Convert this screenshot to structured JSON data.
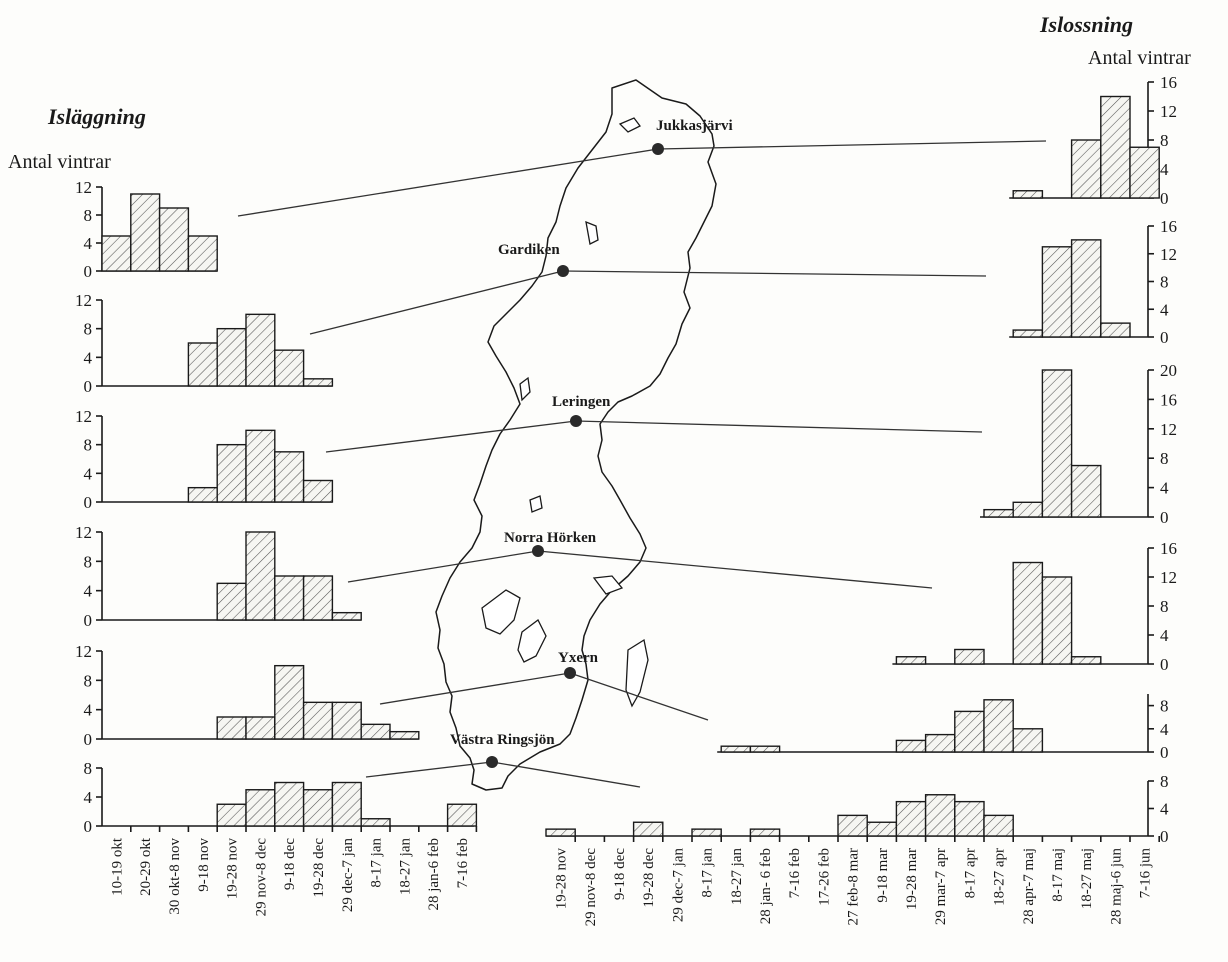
{
  "chart_data": {
    "type": "bar",
    "left_title": "Isläggning",
    "right_title": "Islossning",
    "ylabel": "Antal vintrar",
    "left_categories": [
      "10-19 okt",
      "20-29 okt",
      "30 okt-8 nov",
      "9-18 nov",
      "19-28 nov",
      "29 nov-8 dec",
      "9-18 dec",
      "19-28 dec",
      "29 dec-7 jan",
      "8-17 jan",
      "18-27 jan",
      "28 jan-6 feb",
      "7-16 feb"
    ],
    "right_categories": [
      "19-28 nov",
      "29 nov-8 dec",
      "9-18 dec",
      "19-28 dec",
      "29 dec-7 jan",
      "8-17 jan",
      "18-27 jan",
      "28 jan- 6 feb",
      "7-16 feb",
      "17-26 feb",
      "27 feb-8 mar",
      "9-18 mar",
      "19-28 mar",
      "29 mar-7 apr",
      "8-17 apr",
      "18-27 apr",
      "28 apr-7 maj",
      "8-17 maj",
      "18-27 maj",
      "28 maj-6 jun",
      "7-16 jun"
    ],
    "stations": [
      {
        "name": "Jukkasjärvi",
        "freeze": {
          "start": 0,
          "values": [
            5,
            11,
            9,
            5
          ],
          "ylim": [
            0,
            12
          ],
          "ticks": [
            0,
            4,
            8,
            12
          ]
        },
        "breakup": {
          "start": 16,
          "values": [
            1,
            0,
            8,
            14,
            7
          ],
          "ylim": [
            0,
            16
          ],
          "ticks": [
            0,
            4,
            8,
            12,
            16
          ]
        }
      },
      {
        "name": "Gardiken",
        "freeze": {
          "start": 0,
          "values": [
            0,
            0,
            0,
            6,
            8,
            10,
            5,
            1
          ],
          "ylim": [
            0,
            12
          ],
          "ticks": [
            0,
            4,
            8,
            12
          ]
        },
        "breakup": {
          "start": 16,
          "values": [
            1,
            13,
            14,
            2
          ],
          "ylim": [
            0,
            16
          ],
          "ticks": [
            0,
            4,
            8,
            12,
            16
          ]
        }
      },
      {
        "name": "Leringen",
        "freeze": {
          "start": 0,
          "values": [
            0,
            0,
            0,
            2,
            8,
            10,
            7,
            3
          ],
          "ylim": [
            0,
            12
          ],
          "ticks": [
            0,
            4,
            8,
            12
          ]
        },
        "breakup": {
          "start": 15,
          "values": [
            1,
            2,
            20,
            7
          ],
          "ylim": [
            0,
            20
          ],
          "ticks": [
            0,
            4,
            8,
            12,
            16,
            20
          ]
        }
      },
      {
        "name": "Norra Hörken",
        "freeze": {
          "start": 0,
          "values": [
            0,
            0,
            0,
            0,
            5,
            12,
            6,
            6,
            1
          ],
          "ylim": [
            0,
            12
          ],
          "ticks": [
            0,
            4,
            8,
            12
          ]
        },
        "breakup": {
          "start": 12,
          "values": [
            1,
            0,
            2,
            0,
            14,
            12,
            1
          ],
          "ylim": [
            0,
            16
          ],
          "ticks": [
            0,
            4,
            8,
            12,
            16
          ]
        }
      },
      {
        "name": "Yxern",
        "freeze": {
          "start": 0,
          "values": [
            0,
            0,
            0,
            0,
            3,
            3,
            10,
            5,
            5,
            2,
            1
          ],
          "ylim": [
            0,
            12
          ],
          "ticks": [
            0,
            4,
            8,
            12
          ]
        },
        "breakup": {
          "start": 6,
          "values": [
            1,
            1,
            0,
            0,
            0,
            0,
            2,
            3,
            7,
            9,
            4
          ],
          "ylim": [
            0,
            10
          ],
          "ticks": [
            0,
            4,
            8
          ]
        }
      },
      {
        "name": "Västra Ringsjön",
        "freeze": {
          "start": 0,
          "values": [
            0,
            0,
            0,
            0,
            3,
            5,
            6,
            5,
            6,
            1,
            0,
            0,
            3
          ],
          "ylim": [
            0,
            8
          ],
          "ticks": [
            0,
            4,
            8
          ]
        },
        "breakup": {
          "start": 0,
          "values": [
            1,
            0,
            0,
            2,
            0,
            1,
            0,
            1,
            0,
            0,
            3,
            2,
            5,
            6,
            5,
            3
          ],
          "ylim": [
            0,
            8
          ],
          "ticks": [
            0,
            4,
            8
          ]
        }
      }
    ]
  }
}
